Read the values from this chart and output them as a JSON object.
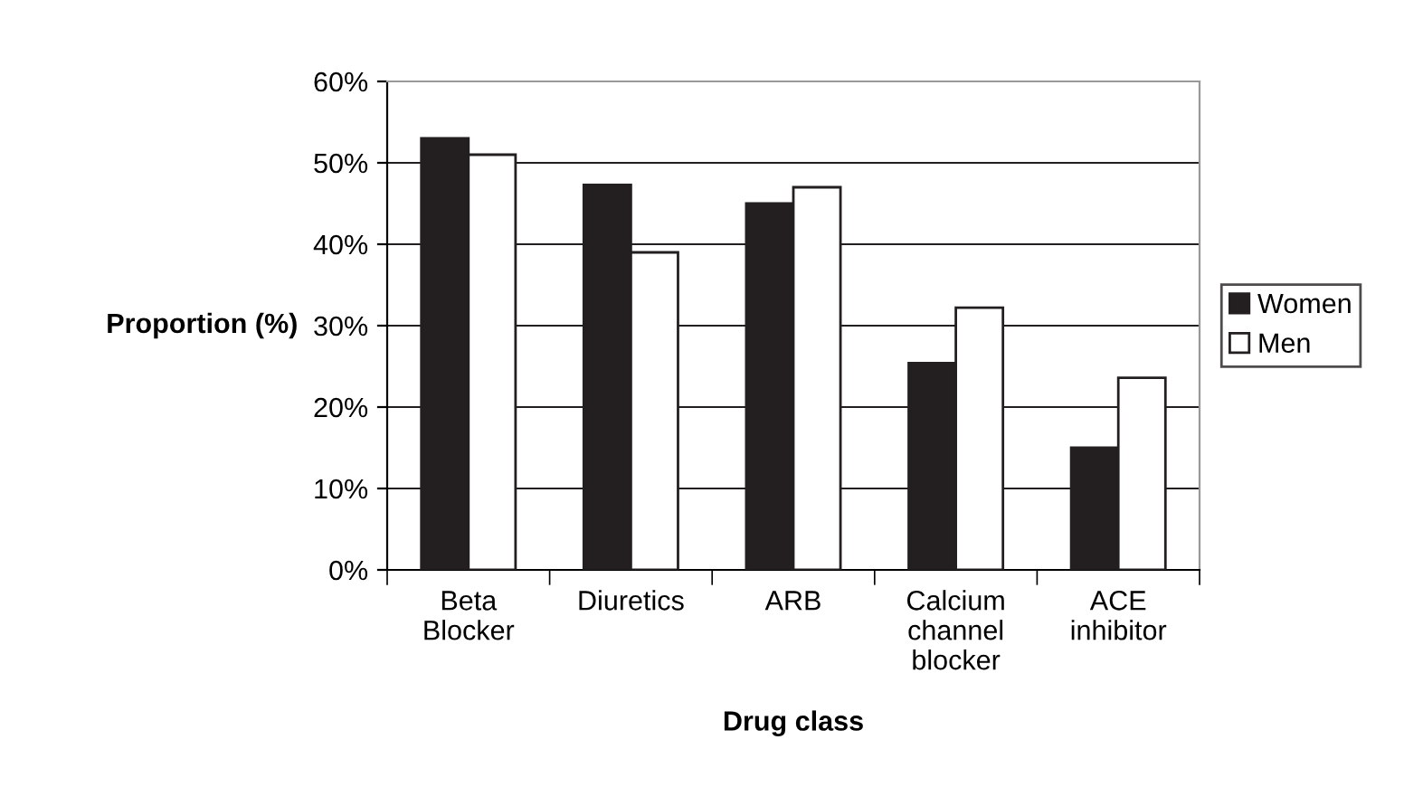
{
  "chart_data": {
    "type": "bar",
    "xlabel": "Drug class",
    "ylabel": "Proportion (%)",
    "categories": [
      "Beta\nBlocker",
      "Diuretics",
      "ARB",
      "Calcium\nchannel\nblocker",
      "ACE\ninhibitor"
    ],
    "series": [
      {
        "name": "Women",
        "color": "#231f20",
        "values": [
          53,
          47.3,
          45,
          25.4,
          15
        ]
      },
      {
        "name": "Men",
        "color": "#ffffff",
        "values": [
          51,
          39,
          47,
          32.2,
          23.6
        ]
      }
    ],
    "ylim": [
      0,
      60
    ],
    "yticks": [
      {
        "value": 0,
        "label": "0%"
      },
      {
        "value": 10,
        "label": "10%"
      },
      {
        "value": 20,
        "label": "20%"
      },
      {
        "value": 30,
        "label": "30%"
      },
      {
        "value": 40,
        "label": "40%"
      },
      {
        "value": 50,
        "label": "50%"
      },
      {
        "value": 60,
        "label": "60%"
      }
    ],
    "grid": "y",
    "legend": "right"
  }
}
